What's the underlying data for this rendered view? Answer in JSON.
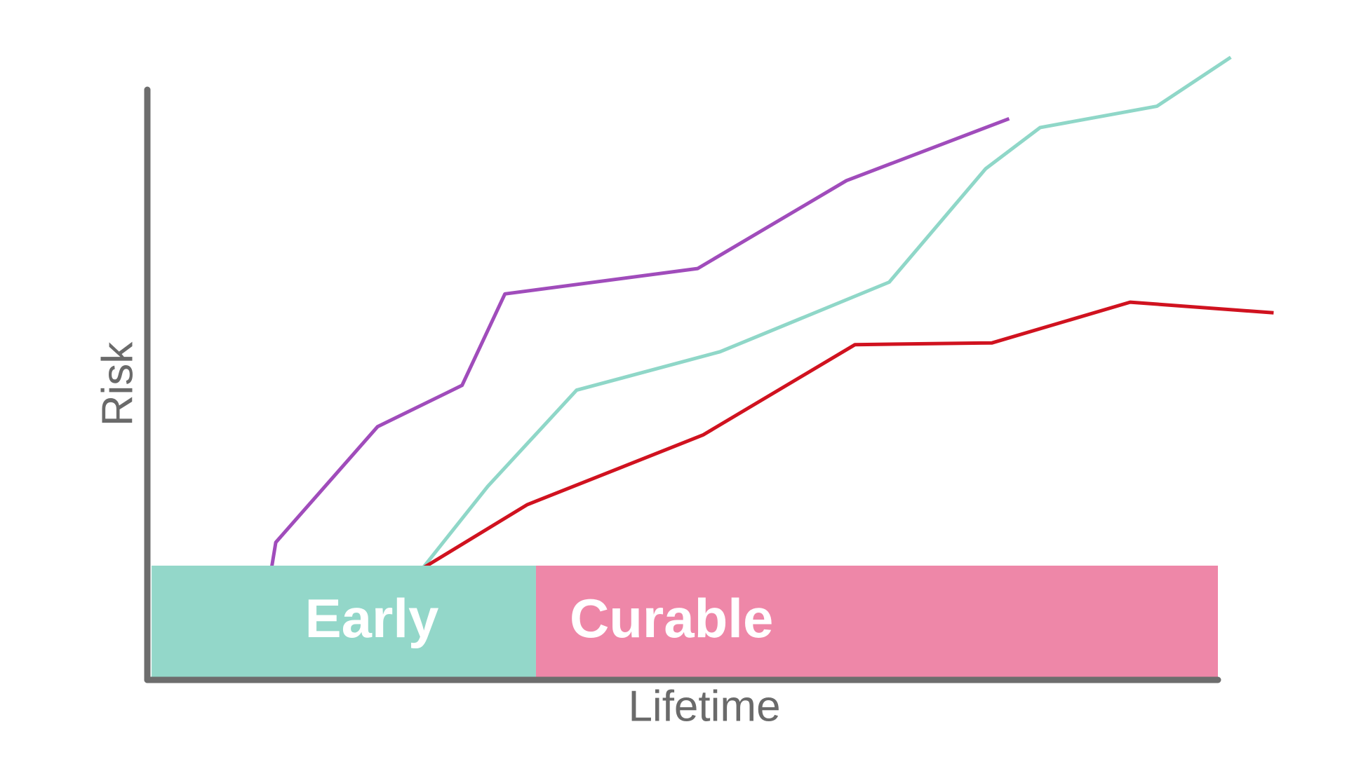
{
  "chart_data": {
    "type": "line",
    "x_label": "Lifetime",
    "y_label": "Risk",
    "xlim": [
      0,
      100
    ],
    "ylim": [
      0,
      100
    ],
    "grid": false,
    "series": [
      {
        "color": "#a04cbb",
        "x": [
          11.6,
          12.0,
          21.5,
          29.4,
          33.4,
          51.4,
          65.3,
          80.5
        ],
        "values": [
          18.9,
          23.3,
          42.9,
          49.9,
          65.4,
          69.7,
          84.6,
          95.1
        ]
      },
      {
        "color": "#8fd7c8",
        "x": [
          25.7,
          31.8,
          40.1,
          53.5,
          69.3,
          78.3,
          83.4,
          94.3,
          101.2
        ],
        "values": [
          18.9,
          32.8,
          49.1,
          55.6,
          67.4,
          86.6,
          93.6,
          97.2,
          105.5
        ]
      },
      {
        "color": "#d0121f",
        "x": [
          25.7,
          35.5,
          51.9,
          66.1,
          78.9,
          91.8,
          105.2
        ],
        "values": [
          18.9,
          29.7,
          41.5,
          56.8,
          57.1,
          64.0,
          62.2
        ]
      }
    ],
    "bands": [
      {
        "label": "Early",
        "x0": 0.4,
        "x1": 36.3,
        "color": "#93d7c9"
      },
      {
        "label": "Curable",
        "x0": 36.3,
        "x1": 100,
        "color": "#ee87a8"
      }
    ]
  }
}
